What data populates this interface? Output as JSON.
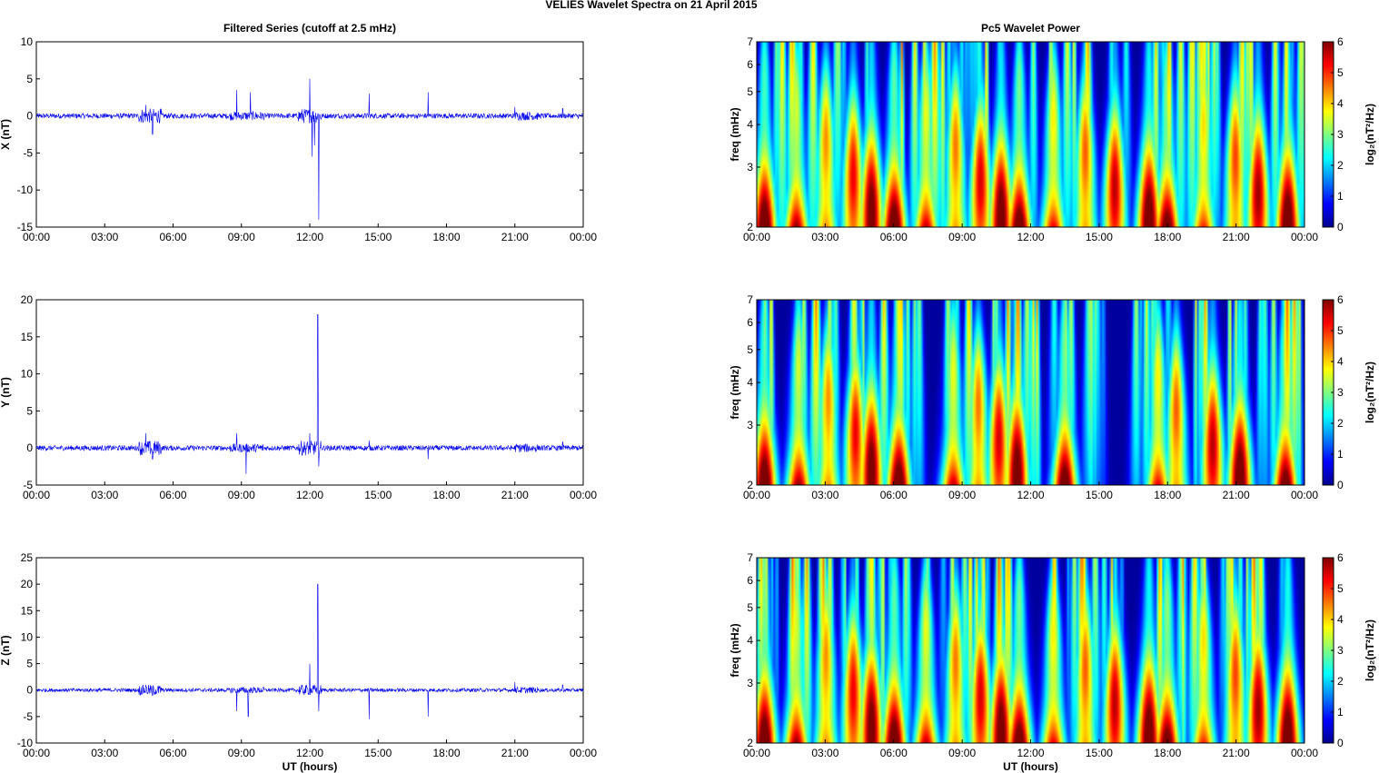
{
  "figure_title": "VELIES Wavelet Spectra on 21 April     2015",
  "chart_data": [
    {
      "type": "line",
      "title": "Filtered Series (cutoff at 2.5 mHz)",
      "ylabel": "X (nT)",
      "xlabel": "",
      "ylim": [
        -15,
        10
      ],
      "yticks": [
        -15,
        -10,
        -5,
        0,
        5,
        10
      ],
      "xtick_labels": [
        "00:00",
        "03:00",
        "06:00",
        "09:00",
        "12:00",
        "15:00",
        "18:00",
        "21:00",
        "00:00"
      ],
      "series_color": "#0000ee",
      "series": [
        {
          "name": "",
          "x_hours": [
            0,
            4.8,
            5.1,
            8.8,
            9.4,
            12.0,
            12.1,
            12.2,
            12.4,
            14.6,
            17.2,
            21.0,
            23.1
          ],
          "values": [
            0,
            1.5,
            -2.5,
            3.5,
            3.2,
            5.0,
            -5.5,
            -4.0,
            -14.0,
            3.0,
            3.2,
            1.2,
            1.0
          ]
        }
      ]
    },
    {
      "type": "line",
      "title": "",
      "ylabel": "Y (nT)",
      "xlabel": "",
      "ylim": [
        -5,
        20
      ],
      "yticks": [
        -5,
        0,
        5,
        10,
        15,
        20
      ],
      "xtick_labels": [
        "00:00",
        "03:00",
        "06:00",
        "09:00",
        "12:00",
        "15:00",
        "18:00",
        "21:00",
        "00:00"
      ],
      "series_color": "#0000ee",
      "series": [
        {
          "name": "",
          "x_hours": [
            0,
            4.8,
            5.1,
            8.8,
            9.2,
            12.0,
            12.35,
            12.4,
            14.6,
            17.2,
            23.1
          ],
          "values": [
            0,
            2.0,
            -1.5,
            2.0,
            -3.5,
            2.0,
            18.0,
            -2.5,
            1.0,
            -1.5,
            0.8
          ]
        }
      ]
    },
    {
      "type": "line",
      "title": "",
      "ylabel": "Z (nT)",
      "xlabel": "UT (hours)",
      "ylim": [
        -10,
        25
      ],
      "yticks": [
        -10,
        -5,
        0,
        5,
        10,
        15,
        20,
        25
      ],
      "xtick_labels": [
        "00:00",
        "03:00",
        "06:00",
        "09:00",
        "12:00",
        "15:00",
        "18:00",
        "21:00",
        "00:00"
      ],
      "series_color": "#0000ee",
      "series": [
        {
          "name": "",
          "x_hours": [
            0,
            4.8,
            5.1,
            8.8,
            9.3,
            12.0,
            12.35,
            12.4,
            14.6,
            17.2,
            21.0,
            23.1
          ],
          "values": [
            0,
            1.0,
            -1.0,
            -4.0,
            -5.0,
            5.0,
            20.0,
            -4.0,
            -5.5,
            -5.0,
            1.5,
            1.0
          ]
        }
      ]
    },
    {
      "type": "heatmap",
      "title": "Pc5 Wavelet Power",
      "ylabel": "freq (mHz)",
      "xlabel": "",
      "ylim": [
        2,
        7
      ],
      "ytick_labels": [
        "2",
        "3",
        "4",
        "5",
        "6",
        "7"
      ],
      "xtick_labels": [
        "00:00",
        "03:00",
        "06:00",
        "09:00",
        "12:00",
        "15:00",
        "18:00",
        "21:00",
        "00:00"
      ],
      "colorbar_label": "log₂(nT²/Hz)",
      "colorbar_ticks": [
        "0",
        "1",
        "2",
        "3",
        "4",
        "5",
        "6"
      ],
      "clim": [
        0,
        6
      ],
      "hotspots_hours": [
        0.3,
        1.7,
        3.0,
        4.2,
        5.0,
        6.0,
        7.4,
        8.7,
        9.8,
        10.7,
        11.5,
        13.0,
        14.4,
        15.7,
        17.2,
        18.0,
        19.6,
        21.0,
        22.0,
        23.3
      ]
    },
    {
      "type": "heatmap",
      "title": "",
      "ylabel": "freq (mHz)",
      "xlabel": "",
      "ylim": [
        2,
        7
      ],
      "ytick_labels": [
        "2",
        "3",
        "4",
        "5",
        "6",
        "7"
      ],
      "xtick_labels": [
        "00:00",
        "03:00",
        "06:00",
        "09:00",
        "12:00",
        "15:00",
        "18:00",
        "21:00",
        "00:00"
      ],
      "colorbar_label": "log₂(nT²/Hz)",
      "colorbar_ticks": [
        "0",
        "1",
        "2",
        "3",
        "4",
        "5",
        "6"
      ],
      "clim": [
        0,
        6
      ],
      "hotspots_hours": [
        0.3,
        1.8,
        3.1,
        4.3,
        5.0,
        6.2,
        8.6,
        9.7,
        10.6,
        11.4,
        13.5,
        17.6,
        18.4,
        20.0,
        21.2,
        23.2
      ]
    },
    {
      "type": "heatmap",
      "title": "",
      "ylabel": "freq (mHz)",
      "xlabel": "UT (hours)",
      "ylim": [
        2,
        7
      ],
      "ytick_labels": [
        "2",
        "3",
        "4",
        "5",
        "6",
        "7"
      ],
      "xtick_labels": [
        "00:00",
        "03:00",
        "06:00",
        "09:00",
        "12:00",
        "15:00",
        "18:00",
        "21:00",
        "00:00"
      ],
      "colorbar_label": "log₂(nT²/Hz)",
      "colorbar_ticks": [
        "0",
        "1",
        "2",
        "3",
        "4",
        "5",
        "6"
      ],
      "clim": [
        0,
        6
      ],
      "hotspots_hours": [
        0.3,
        1.7,
        3.0,
        4.2,
        5.0,
        6.0,
        7.4,
        8.7,
        9.8,
        10.7,
        11.5,
        13.0,
        14.4,
        15.7,
        17.2,
        18.0,
        19.6,
        21.0,
        22.0,
        23.3
      ]
    }
  ]
}
